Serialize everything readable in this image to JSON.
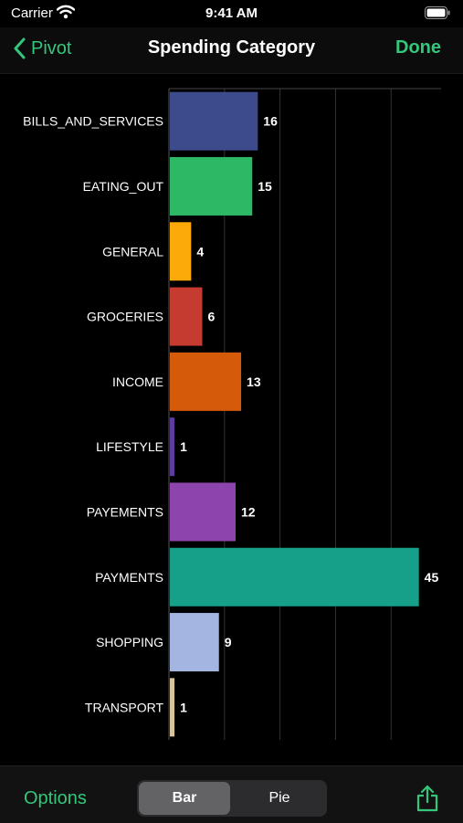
{
  "status_bar": {
    "carrier": "Carrier",
    "time": "9:41 AM"
  },
  "nav": {
    "back_label": "Pivot",
    "title": "Spending Category",
    "done_label": "Done"
  },
  "toolbar": {
    "options_label": "Options",
    "segments": [
      "Bar",
      "Pie"
    ],
    "selected_segment": "Bar",
    "share_icon": "share-icon"
  },
  "colors": {
    "accent": "#34c77b"
  },
  "chart_data": {
    "type": "bar",
    "orientation": "horizontal",
    "categories": [
      "BILLS_AND_SERVICES",
      "EATING_OUT",
      "GENERAL",
      "GROCERIES",
      "INCOME",
      "LIFESTYLE",
      "PAYEMENTS",
      "PAYMENTS",
      "SHOPPING",
      "TRANSPORT"
    ],
    "values": [
      16,
      15,
      4,
      6,
      13,
      1,
      12,
      45,
      9,
      1
    ],
    "colors": [
      "#3d4a8c",
      "#2db866",
      "#fca90a",
      "#c63b2f",
      "#d55a0a",
      "#5c3d9e",
      "#8e44ad",
      "#16a08a",
      "#a3b5e0",
      "#d8c49a"
    ],
    "xlim": [
      0,
      49
    ],
    "grid": true,
    "data_labels": true
  }
}
